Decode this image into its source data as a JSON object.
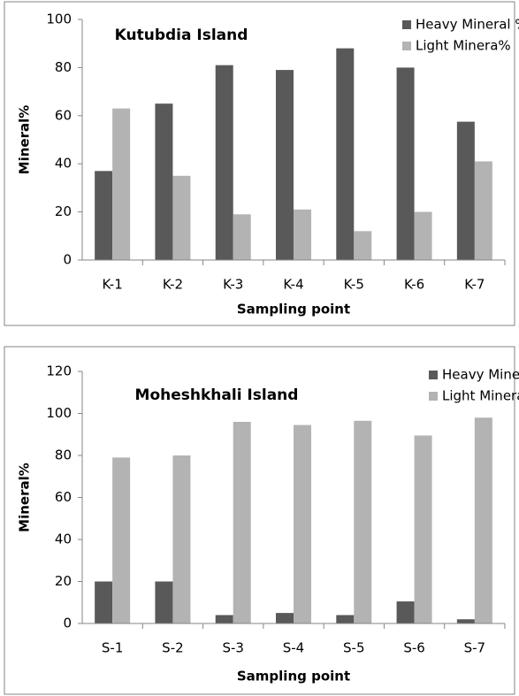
{
  "chart_data": [
    {
      "type": "bar",
      "title": "Kutubdia Island",
      "x_label": "Sampling point",
      "y_label": "Mineral%",
      "categories": [
        "K-1",
        "K-2",
        "K-3",
        "K-4",
        "K-5",
        "K-6",
        "K-7"
      ],
      "series": [
        {
          "name": "Heavy Mineral %",
          "color": "#595959",
          "values": [
            37,
            65,
            81,
            79,
            88,
            80,
            57.5
          ]
        },
        {
          "name": "Light Minera%",
          "color": "#b3b3b3",
          "values": [
            63,
            35,
            19,
            21,
            12,
            20,
            41
          ]
        }
      ],
      "ylim": [
        0,
        100
      ],
      "yticks": [
        0,
        20,
        40,
        60,
        80,
        100
      ]
    },
    {
      "type": "bar",
      "title": "Moheshkhali Island",
      "x_label": "Sampling point",
      "y_label": "Mineral%",
      "categories": [
        "S-1",
        "S-2",
        "S-3",
        "S-4",
        "S-5",
        "S-6",
        "S-7"
      ],
      "series": [
        {
          "name": "Heavy Mineral %",
          "color": "#595959",
          "values": [
            20,
            20,
            4,
            5,
            4,
            10.5,
            2
          ]
        },
        {
          "name": "Light Mineral %",
          "color": "#b3b3b3",
          "values": [
            79,
            80,
            96,
            94.5,
            96.5,
            89.5,
            98
          ]
        }
      ],
      "ylim": [
        0,
        120
      ],
      "yticks": [
        0,
        20,
        40,
        60,
        80,
        100,
        120
      ]
    }
  ]
}
